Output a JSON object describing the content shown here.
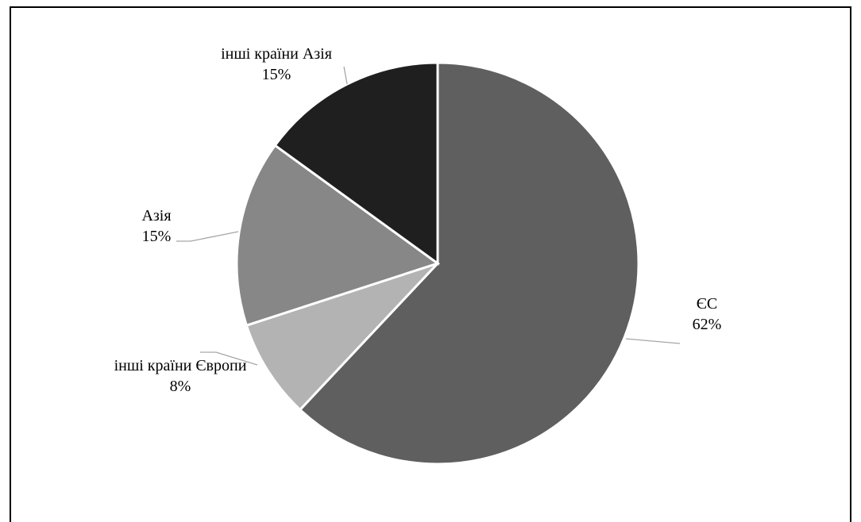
{
  "chart_data": {
    "type": "pie",
    "title": "",
    "slices": [
      {
        "label": "ЄС",
        "value": 62,
        "value_label": "62%",
        "color": "#5f5f5f"
      },
      {
        "label": "інші країни Європи",
        "value": 8,
        "value_label": "8%",
        "color": "#b3b3b3"
      },
      {
        "label": "Азія",
        "value": 15,
        "value_label": "15%",
        "color": "#878787"
      },
      {
        "label": "інші країни Азія",
        "value": 15,
        "value_label": "15%",
        "color": "#1f1f1f"
      }
    ],
    "start_angle_deg": 0,
    "direction": "clockwise",
    "legend": "none",
    "labels": "outside with leader lines"
  }
}
